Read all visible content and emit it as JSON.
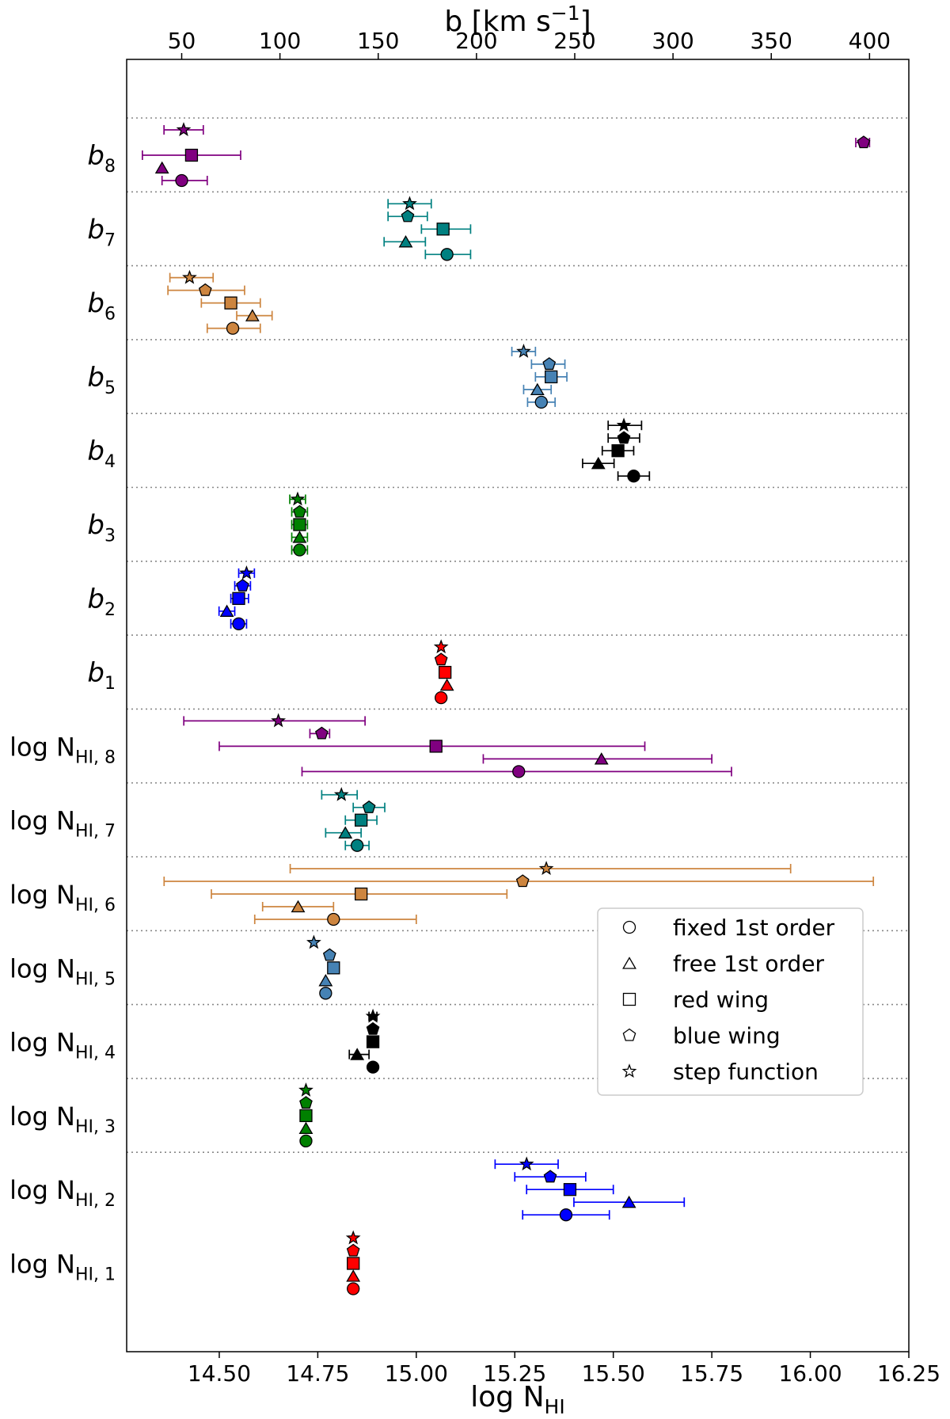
{
  "chart_data": {
    "type": "scatter",
    "xlabel_bottom": "log N",
    "xlabel_bottom_sub": "HI",
    "xlabel_top": "b [km s",
    "xlabel_top_sup": "−1",
    "xlabel_top_close": "]",
    "xlim_bottom": [
      14.265,
      16.25
    ],
    "xticks_bottom": [
      "14.50",
      "14.75",
      "15.00",
      "15.25",
      "15.50",
      "15.75",
      "16.00",
      "16.25"
    ],
    "xlim_top": [
      22,
      420
    ],
    "xticks_top": [
      "50",
      "100",
      "150",
      "200",
      "250",
      "300",
      "350",
      "400"
    ],
    "rows": [
      {
        "key": "b8",
        "base": "b",
        "sub": "8",
        "axis": "top",
        "color": "#800080",
        "points": [
          {
            "marker": "circle",
            "x": 50,
            "lo": 40,
            "hi": 63
          },
          {
            "marker": "triangle",
            "x": 40,
            "lo": null,
            "hi": null
          },
          {
            "marker": "square",
            "x": 55,
            "lo": 30,
            "hi": 80
          },
          {
            "marker": "pentagon",
            "x": 397,
            "lo": 393,
            "hi": 400
          },
          {
            "marker": "star",
            "x": 51,
            "lo": 41,
            "hi": 61
          }
        ]
      },
      {
        "key": "b7",
        "base": "b",
        "sub": "7",
        "axis": "top",
        "color": "#008080",
        "points": [
          {
            "marker": "circle",
            "x": 185,
            "lo": 174,
            "hi": 197
          },
          {
            "marker": "triangle",
            "x": 164,
            "lo": 153,
            "hi": 174
          },
          {
            "marker": "square",
            "x": 183,
            "lo": 172,
            "hi": 197
          },
          {
            "marker": "pentagon",
            "x": 165,
            "lo": 155,
            "hi": 175
          },
          {
            "marker": "star",
            "x": 166,
            "lo": 155,
            "hi": 177
          }
        ]
      },
      {
        "key": "b6",
        "base": "b",
        "sub": "6",
        "axis": "top",
        "color": "#cd853f",
        "points": [
          {
            "marker": "circle",
            "x": 76,
            "lo": 63,
            "hi": 90
          },
          {
            "marker": "triangle",
            "x": 86,
            "lo": 78,
            "hi": 96
          },
          {
            "marker": "square",
            "x": 75,
            "lo": 60,
            "hi": 90
          },
          {
            "marker": "pentagon",
            "x": 62,
            "lo": 43,
            "hi": 82
          },
          {
            "marker": "star",
            "x": 54,
            "lo": 44,
            "hi": 66
          }
        ]
      },
      {
        "key": "b5",
        "base": "b",
        "sub": "5",
        "axis": "top",
        "color": "#4682b4",
        "points": [
          {
            "marker": "circle",
            "x": 233,
            "lo": 226,
            "hi": 240
          },
          {
            "marker": "triangle",
            "x": 231,
            "lo": 224,
            "hi": 238
          },
          {
            "marker": "square",
            "x": 238,
            "lo": 230,
            "hi": 246
          },
          {
            "marker": "pentagon",
            "x": 237,
            "lo": 228,
            "hi": 245
          },
          {
            "marker": "star",
            "x": 224,
            "lo": 218,
            "hi": 230
          }
        ]
      },
      {
        "key": "b4",
        "base": "b",
        "sub": "4",
        "axis": "top",
        "color": "#000000",
        "points": [
          {
            "marker": "circle",
            "x": 280,
            "lo": 272,
            "hi": 288
          },
          {
            "marker": "triangle",
            "x": 262,
            "lo": 254,
            "hi": 270
          },
          {
            "marker": "square",
            "x": 272,
            "lo": 264,
            "hi": 280
          },
          {
            "marker": "pentagon",
            "x": 275,
            "lo": 267,
            "hi": 283
          },
          {
            "marker": "star",
            "x": 275,
            "lo": 267,
            "hi": 284
          }
        ]
      },
      {
        "key": "b3",
        "base": "b",
        "sub": "3",
        "axis": "top",
        "color": "#008000",
        "points": [
          {
            "marker": "circle",
            "x": 110,
            "lo": 106,
            "hi": 114
          },
          {
            "marker": "triangle",
            "x": 110,
            "lo": 106,
            "hi": 114
          },
          {
            "marker": "square",
            "x": 110,
            "lo": 106,
            "hi": 114
          },
          {
            "marker": "pentagon",
            "x": 110,
            "lo": 106,
            "hi": 114
          },
          {
            "marker": "star",
            "x": 109,
            "lo": 105,
            "hi": 113
          }
        ]
      },
      {
        "key": "b2",
        "base": "b",
        "sub": "2",
        "axis": "top",
        "color": "#0000ff",
        "points": [
          {
            "marker": "circle",
            "x": 79,
            "lo": 75,
            "hi": 83
          },
          {
            "marker": "triangle",
            "x": 73,
            "lo": 69,
            "hi": 77
          },
          {
            "marker": "square",
            "x": 79,
            "lo": 75,
            "hi": 84
          },
          {
            "marker": "pentagon",
            "x": 81,
            "lo": 77,
            "hi": 85
          },
          {
            "marker": "star",
            "x": 83,
            "lo": 79,
            "hi": 87
          }
        ]
      },
      {
        "key": "b1",
        "base": "b",
        "sub": "1",
        "axis": "top",
        "color": "#ff0000",
        "points": [
          {
            "marker": "circle",
            "x": 182,
            "lo": null,
            "hi": null
          },
          {
            "marker": "triangle",
            "x": 185,
            "lo": null,
            "hi": null
          },
          {
            "marker": "square",
            "x": 184,
            "lo": null,
            "hi": null
          },
          {
            "marker": "pentagon",
            "x": 182,
            "lo": null,
            "hi": null
          },
          {
            "marker": "star",
            "x": 182,
            "lo": null,
            "hi": null
          }
        ]
      },
      {
        "key": "N8",
        "base": "log N",
        "sub": "HI, 8",
        "axis": "bottom",
        "color": "#800080",
        "points": [
          {
            "marker": "circle",
            "x": 15.26,
            "lo": 14.71,
            "hi": 15.8
          },
          {
            "marker": "triangle",
            "x": 15.47,
            "lo": 15.17,
            "hi": 15.75
          },
          {
            "marker": "square",
            "x": 15.05,
            "lo": 14.5,
            "hi": 15.58
          },
          {
            "marker": "pentagon",
            "x": 14.76,
            "lo": 14.73,
            "hi": 14.78
          },
          {
            "marker": "star",
            "x": 14.65,
            "lo": 14.41,
            "hi": 14.87
          }
        ]
      },
      {
        "key": "N7",
        "base": "log N",
        "sub": "HI, 7",
        "axis": "bottom",
        "color": "#008080",
        "points": [
          {
            "marker": "circle",
            "x": 14.85,
            "lo": 14.82,
            "hi": 14.88
          },
          {
            "marker": "triangle",
            "x": 14.82,
            "lo": 14.77,
            "hi": 14.86
          },
          {
            "marker": "square",
            "x": 14.86,
            "lo": 14.82,
            "hi": 14.9
          },
          {
            "marker": "pentagon",
            "x": 14.88,
            "lo": 14.84,
            "hi": 14.92
          },
          {
            "marker": "star",
            "x": 14.81,
            "lo": 14.76,
            "hi": 14.85
          }
        ]
      },
      {
        "key": "N6",
        "base": "log N",
        "sub": "HI, 6",
        "axis": "bottom",
        "color": "#cd853f",
        "points": [
          {
            "marker": "circle",
            "x": 14.79,
            "lo": 14.59,
            "hi": 15.0
          },
          {
            "marker": "triangle",
            "x": 14.7,
            "lo": 14.61,
            "hi": 14.79
          },
          {
            "marker": "square",
            "x": 14.86,
            "lo": 14.48,
            "hi": 15.23
          },
          {
            "marker": "pentagon",
            "x": 15.27,
            "lo": 14.36,
            "hi": 16.16
          },
          {
            "marker": "star",
            "x": 15.33,
            "lo": 14.68,
            "hi": 15.95
          }
        ]
      },
      {
        "key": "N5",
        "base": "log N",
        "sub": "HI, 5",
        "axis": "bottom",
        "color": "#4682b4",
        "points": [
          {
            "marker": "circle",
            "x": 14.77,
            "lo": null,
            "hi": null
          },
          {
            "marker": "triangle",
            "x": 14.77,
            "lo": null,
            "hi": null
          },
          {
            "marker": "square",
            "x": 14.79,
            "lo": null,
            "hi": null
          },
          {
            "marker": "pentagon",
            "x": 14.78,
            "lo": null,
            "hi": null
          },
          {
            "marker": "star",
            "x": 14.74,
            "lo": null,
            "hi": null
          }
        ]
      },
      {
        "key": "N4",
        "base": "log N",
        "sub": "HI, 4",
        "axis": "bottom",
        "color": "#000000",
        "points": [
          {
            "marker": "circle",
            "x": 14.89,
            "lo": null,
            "hi": null
          },
          {
            "marker": "triangle",
            "x": 14.85,
            "lo": 14.83,
            "hi": 14.88
          },
          {
            "marker": "square",
            "x": 14.89,
            "lo": null,
            "hi": null
          },
          {
            "marker": "pentagon",
            "x": 14.89,
            "lo": null,
            "hi": null
          },
          {
            "marker": "star",
            "x": 14.89,
            "lo": 14.88,
            "hi": 14.9
          }
        ]
      },
      {
        "key": "N3",
        "base": "log N",
        "sub": "HI, 3",
        "axis": "bottom",
        "color": "#008000",
        "points": [
          {
            "marker": "circle",
            "x": 14.72,
            "lo": null,
            "hi": null
          },
          {
            "marker": "triangle",
            "x": 14.72,
            "lo": null,
            "hi": null
          },
          {
            "marker": "square",
            "x": 14.72,
            "lo": null,
            "hi": null
          },
          {
            "marker": "pentagon",
            "x": 14.72,
            "lo": null,
            "hi": null
          },
          {
            "marker": "star",
            "x": 14.72,
            "lo": null,
            "hi": null
          }
        ]
      },
      {
        "key": "N2",
        "base": "log N",
        "sub": "HI, 2",
        "axis": "bottom",
        "color": "#0000ff",
        "points": [
          {
            "marker": "circle",
            "x": 15.38,
            "lo": 15.27,
            "hi": 15.49
          },
          {
            "marker": "triangle",
            "x": 15.54,
            "lo": 15.4,
            "hi": 15.68
          },
          {
            "marker": "square",
            "x": 15.39,
            "lo": 15.28,
            "hi": 15.5
          },
          {
            "marker": "pentagon",
            "x": 15.34,
            "lo": 15.25,
            "hi": 15.43
          },
          {
            "marker": "star",
            "x": 15.28,
            "lo": 15.2,
            "hi": 15.36
          }
        ]
      },
      {
        "key": "N1",
        "base": "log N",
        "sub": "HI, 1",
        "axis": "bottom",
        "color": "#ff0000",
        "points": [
          {
            "marker": "circle",
            "x": 14.84,
            "lo": null,
            "hi": null
          },
          {
            "marker": "triangle",
            "x": 14.84,
            "lo": null,
            "hi": null
          },
          {
            "marker": "square",
            "x": 14.84,
            "lo": null,
            "hi": null
          },
          {
            "marker": "pentagon",
            "x": 14.84,
            "lo": null,
            "hi": null
          },
          {
            "marker": "star",
            "x": 14.84,
            "lo": null,
            "hi": null
          }
        ]
      }
    ],
    "legend": {
      "placement": "lower-right",
      "entries": [
        {
          "marker": "circle",
          "label": "fixed 1st order"
        },
        {
          "marker": "triangle",
          "label": "free 1st order"
        },
        {
          "marker": "square",
          "label": "red wing"
        },
        {
          "marker": "pentagon",
          "label": "blue wing"
        },
        {
          "marker": "star",
          "label": "step function"
        }
      ]
    },
    "grid": "dotted horizontal separators between rows"
  }
}
